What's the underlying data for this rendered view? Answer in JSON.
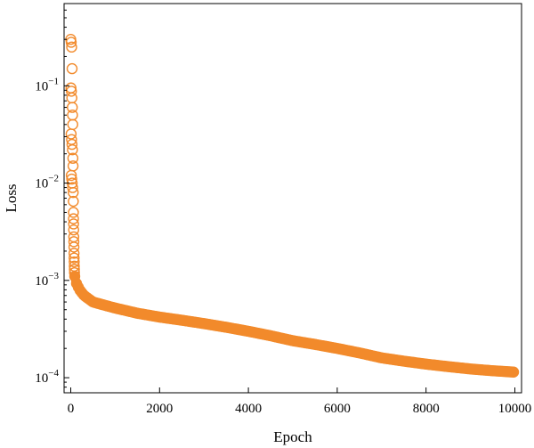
{
  "chart_data": {
    "type": "scatter",
    "title": "",
    "xlabel": "Epoch",
    "ylabel": "Loss",
    "x_scale": "linear",
    "y_scale": "log",
    "xlim": [
      -150,
      10150
    ],
    "ylim": [
      7e-05,
      0.7
    ],
    "grid": false,
    "legend": "none",
    "marker": "open-circle",
    "x_ticks": [
      0,
      2000,
      4000,
      6000,
      8000,
      10000
    ],
    "y_ticks": [
      {
        "value": 0.0001,
        "base": "10",
        "exp": "−4"
      },
      {
        "value": 0.001,
        "base": "10",
        "exp": "−3"
      },
      {
        "value": 0.01,
        "base": "10",
        "exp": "−2"
      },
      {
        "value": 0.1,
        "base": "10",
        "exp": "−1"
      }
    ],
    "series": [
      {
        "color": "#f28a2b",
        "sparse_points": [
          [
            0,
            0.3
          ],
          [
            10,
            0.28
          ],
          [
            20,
            0.25
          ],
          [
            30,
            0.15
          ],
          [
            5,
            0.095
          ],
          [
            15,
            0.088
          ],
          [
            25,
            0.075
          ],
          [
            35,
            0.06
          ],
          [
            40,
            0.05
          ],
          [
            45,
            0.04
          ],
          [
            8,
            0.032
          ],
          [
            18,
            0.028
          ],
          [
            28,
            0.025
          ],
          [
            38,
            0.022
          ],
          [
            48,
            0.018
          ],
          [
            52,
            0.015
          ],
          [
            12,
            0.012
          ],
          [
            22,
            0.011
          ],
          [
            32,
            0.01
          ],
          [
            42,
            0.009
          ],
          [
            55,
            0.008
          ],
          [
            58,
            0.0065
          ],
          [
            60,
            0.005
          ],
          [
            62,
            0.0043
          ],
          [
            64,
            0.0038
          ],
          [
            66,
            0.0033
          ],
          [
            68,
            0.0028
          ],
          [
            70,
            0.0025
          ],
          [
            72,
            0.0022
          ],
          [
            74,
            0.0019
          ],
          [
            76,
            0.0017
          ],
          [
            78,
            0.00155
          ],
          [
            80,
            0.0014
          ],
          [
            82,
            0.0013
          ],
          [
            84,
            0.0012
          ]
        ],
        "dense_curve": [
          [
            90,
            0.0011
          ],
          [
            120,
            0.00095
          ],
          [
            200,
            0.0008
          ],
          [
            300,
            0.0007
          ],
          [
            500,
            0.0006
          ],
          [
            800,
            0.00055
          ],
          [
            1000,
            0.00052
          ],
          [
            1500,
            0.00046
          ],
          [
            2000,
            0.00042
          ],
          [
            2500,
            0.00039
          ],
          [
            3000,
            0.00036
          ],
          [
            3500,
            0.00033
          ],
          [
            4000,
            0.0003
          ],
          [
            4500,
            0.00027
          ],
          [
            5000,
            0.00024
          ],
          [
            5500,
            0.00022
          ],
          [
            6000,
            0.0002
          ],
          [
            6500,
            0.00018
          ],
          [
            7000,
            0.00016
          ],
          [
            7500,
            0.000148
          ],
          [
            8000,
            0.000138
          ],
          [
            8500,
            0.00013
          ],
          [
            9000,
            0.000123
          ],
          [
            9500,
            0.000118
          ],
          [
            10000,
            0.000114
          ]
        ]
      }
    ]
  }
}
